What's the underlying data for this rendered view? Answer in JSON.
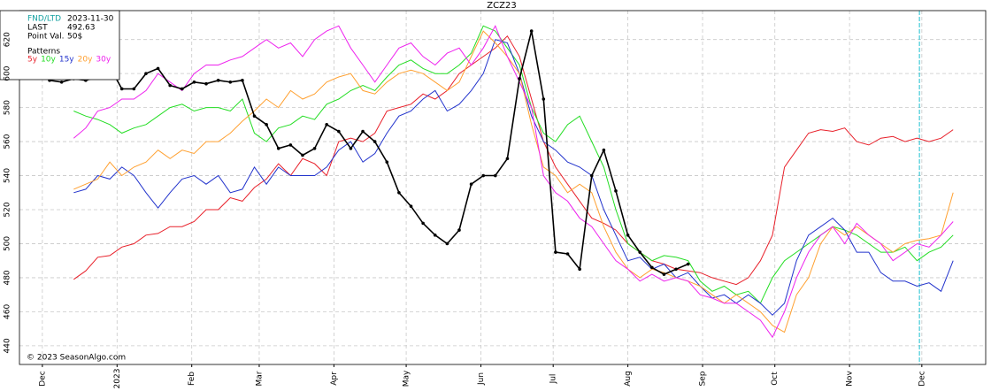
{
  "chart_data": {
    "type": "line",
    "title": "ZCZ23",
    "x": [
      3,
      8,
      13,
      18,
      23,
      28,
      33,
      38,
      43,
      48,
      53,
      58,
      63,
      68,
      73,
      78,
      83,
      88,
      93,
      98,
      103,
      108,
      113,
      118,
      123,
      128,
      133,
      138,
      143,
      148,
      153,
      158,
      163,
      168,
      173,
      178,
      183,
      188,
      193,
      198,
      203,
      208,
      213,
      218,
      223,
      228,
      233,
      238,
      243,
      248,
      253,
      258,
      263,
      268,
      273,
      278,
      283,
      288,
      293,
      298,
      303,
      308,
      313,
      318,
      323,
      328,
      333,
      338,
      343,
      348,
      353,
      358,
      363,
      368,
      373,
      378
    ],
    "xlim": [
      -9.5,
      391.5
    ],
    "xticks": [
      {
        "value": 0,
        "label": "Dec"
      },
      {
        "value": 31,
        "label": "2023"
      },
      {
        "value": 62,
        "label": "Feb"
      },
      {
        "value": 90,
        "label": "Mar"
      },
      {
        "value": 121,
        "label": "Apr"
      },
      {
        "value": 151,
        "label": "May"
      },
      {
        "value": 182,
        "label": "Jun"
      },
      {
        "value": 212,
        "label": "Jul"
      },
      {
        "value": 243,
        "label": "Aug"
      },
      {
        "value": 274,
        "label": "Sep"
      },
      {
        "value": 304,
        "label": "Oct"
      },
      {
        "value": 335,
        "label": "Nov"
      },
      {
        "value": 365,
        "label": "Dec"
      }
    ],
    "ylim": [
      429,
      637
    ],
    "yticks": [
      440,
      460,
      480,
      500,
      520,
      540,
      560,
      580,
      600,
      620
    ],
    "grid": true,
    "series": [
      {
        "name": "5y",
        "color": "#e8202a",
        "values": [
          null,
          null,
          479,
          484,
          492,
          493,
          498,
          500,
          505,
          506,
          510,
          510,
          513,
          520,
          520,
          527,
          525,
          533,
          538,
          547,
          540,
          550,
          547,
          540,
          560,
          562,
          560,
          565,
          578,
          580,
          582,
          588,
          585,
          590,
          600,
          605,
          610,
          615,
          622,
          610,
          585,
          560,
          545,
          535,
          525,
          515,
          512,
          508,
          500,
          495,
          490,
          488,
          485,
          484,
          483,
          480,
          478,
          476,
          480,
          490,
          505,
          545,
          555,
          565,
          567,
          566,
          568,
          560,
          558,
          562,
          563,
          560,
          562,
          560,
          562,
          567
        ]
      },
      {
        "name": "10y",
        "color": "#22dd22",
        "values": [
          null,
          null,
          578,
          575,
          573,
          570,
          565,
          568,
          570,
          575,
          580,
          582,
          578,
          580,
          580,
          578,
          585,
          565,
          560,
          568,
          570,
          575,
          573,
          582,
          585,
          590,
          593,
          590,
          598,
          605,
          608,
          603,
          600,
          600,
          605,
          612,
          628,
          625,
          615,
          605,
          580,
          565,
          560,
          570,
          575,
          560,
          545,
          520,
          500,
          495,
          490,
          493,
          492,
          490,
          478,
          472,
          475,
          470,
          472,
          465,
          480,
          490,
          495,
          500,
          505,
          510,
          508,
          505,
          500,
          495,
          495,
          498,
          490,
          495,
          498,
          505
        ]
      },
      {
        "name": "15y",
        "color": "#2233cc",
        "values": [
          null,
          null,
          530,
          532,
          540,
          538,
          545,
          540,
          530,
          521,
          530,
          538,
          540,
          535,
          540,
          530,
          532,
          545,
          535,
          545,
          540,
          540,
          540,
          545,
          555,
          560,
          548,
          553,
          565,
          575,
          578,
          585,
          590,
          578,
          582,
          590,
          600,
          620,
          618,
          600,
          575,
          560,
          555,
          548,
          545,
          540,
          520,
          505,
          490,
          492,
          485,
          488,
          480,
          483,
          475,
          468,
          470,
          465,
          470,
          465,
          458,
          465,
          490,
          505,
          510,
          515,
          508,
          495,
          495,
          483,
          478,
          478,
          475,
          477,
          472,
          490
        ]
      },
      {
        "name": "20y",
        "color": "#ffa030",
        "values": [
          null,
          null,
          532,
          535,
          538,
          548,
          540,
          545,
          548,
          555,
          550,
          555,
          553,
          560,
          560,
          565,
          572,
          578,
          585,
          580,
          590,
          585,
          588,
          595,
          598,
          600,
          590,
          588,
          595,
          600,
          602,
          600,
          595,
          590,
          595,
          610,
          625,
          618,
          610,
          600,
          570,
          545,
          540,
          530,
          535,
          530,
          510,
          495,
          485,
          480,
          485,
          483,
          480,
          478,
          475,
          470,
          465,
          470,
          465,
          460,
          452,
          448,
          470,
          480,
          500,
          510,
          505,
          510,
          505,
          500,
          495,
          500,
          502,
          503,
          505,
          530
        ]
      },
      {
        "name": "30y",
        "color": "#ee22ee",
        "values": [
          null,
          null,
          562,
          568,
          578,
          580,
          585,
          585,
          590,
          600,
          595,
          590,
          600,
          605,
          605,
          608,
          610,
          615,
          620,
          615,
          618,
          610,
          620,
          625,
          628,
          615,
          605,
          595,
          605,
          615,
          618,
          610,
          605,
          612,
          615,
          605,
          615,
          628,
          610,
          595,
          580,
          540,
          530,
          525,
          515,
          510,
          500,
          490,
          485,
          478,
          482,
          478,
          480,
          478,
          470,
          468,
          465,
          465,
          460,
          455,
          445,
          460,
          480,
          495,
          505,
          510,
          500,
          512,
          505,
          500,
          490,
          495,
          500,
          498,
          505,
          513
        ]
      }
    ],
    "price": {
      "color": "#000000",
      "values": [
        596,
        595,
        597,
        596,
        598,
        604,
        591,
        591,
        600,
        603,
        593,
        591,
        595,
        594,
        596,
        595,
        596,
        575,
        570,
        556,
        558,
        552,
        556,
        570,
        566,
        556,
        566,
        560,
        548,
        530,
        522,
        512,
        505,
        500,
        508,
        535,
        540,
        540,
        550,
        597,
        625,
        585,
        495,
        494,
        485,
        540,
        555,
        531,
        505,
        495,
        486,
        482,
        485,
        488,
        null,
        null,
        null,
        null,
        null,
        null,
        null,
        null,
        null,
        null,
        null,
        null,
        null,
        null,
        null,
        null,
        null,
        null,
        null,
        null,
        null,
        null
      ]
    },
    "fnd_line": {
      "x": 364,
      "color": "#17becf"
    },
    "info": {
      "fnd_label": "FND/LTD",
      "fnd": "2023-11-30",
      "last_label": "LAST",
      "last": 492.63,
      "point_label": "Point Val.",
      "point": "50$",
      "patterns": "Patterns"
    },
    "copyright": "© 2023 SeasonAlgo.com"
  }
}
